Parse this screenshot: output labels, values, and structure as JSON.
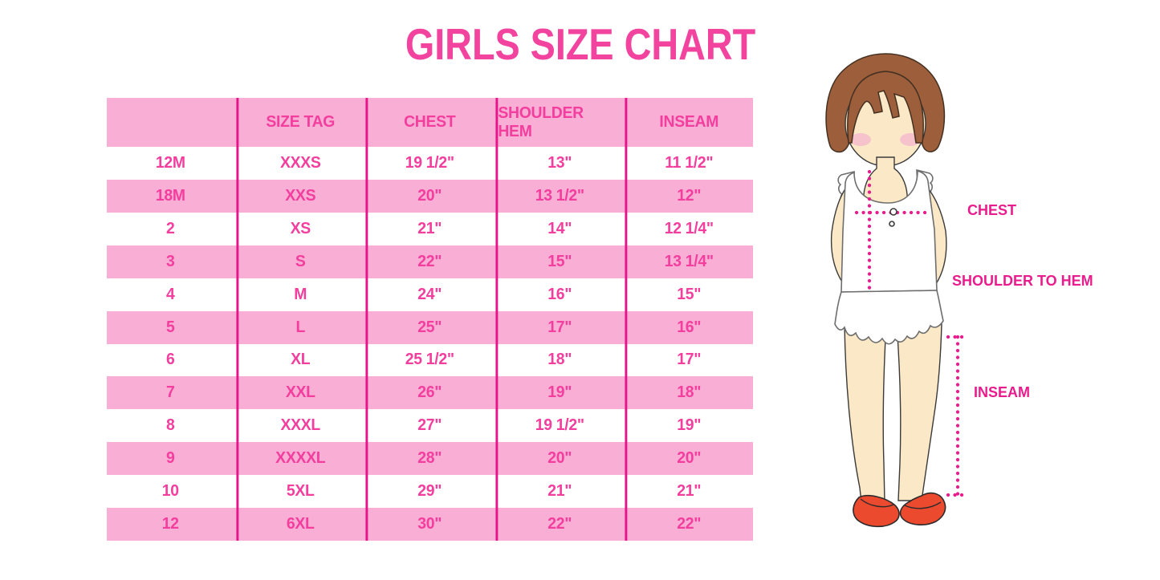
{
  "title": "GIRLS SIZE CHART",
  "colors": {
    "title_pink": "#F2439F",
    "row_pink": "#F9AED6",
    "grid_magenta": "#E8128A",
    "cell_text": "#F33E9E",
    "label_magenta": "#EA1C8D",
    "hair_brown": "#9C5E3B",
    "skin": "#FBE8C6",
    "blush": "#F6C2CC",
    "dress_white": "#FFFFFF",
    "dress_outline": "#6E6E6E",
    "shoe_red": "#EB4A2F"
  },
  "chart_data": {
    "type": "table",
    "title": "GIRLS SIZE CHART",
    "columns": [
      "",
      "SIZE TAG",
      "CHEST",
      "SHOULDER HEM",
      "INSEAM"
    ],
    "rows": [
      [
        "12M",
        "XXXS",
        "19 1/2\"",
        "13\"",
        "11 1/2\""
      ],
      [
        "18M",
        "XXS",
        "20\"",
        "13 1/2\"",
        "12\""
      ],
      [
        "2",
        "XS",
        "21\"",
        "14\"",
        "12 1/4\""
      ],
      [
        "3",
        "S",
        "22\"",
        "15\"",
        "13 1/4\""
      ],
      [
        "4",
        "M",
        "24\"",
        "16\"",
        "15\""
      ],
      [
        "5",
        "L",
        "25\"",
        "17\"",
        "16\""
      ],
      [
        "6",
        "XL",
        "25 1/2\"",
        "18\"",
        "17\""
      ],
      [
        "7",
        "XXL",
        "26\"",
        "19\"",
        "18\""
      ],
      [
        "8",
        "XXXL",
        "27\"",
        "19 1/2\"",
        "19\""
      ],
      [
        "9",
        "XXXXL",
        "28\"",
        "20\"",
        "20\""
      ],
      [
        "10",
        "5XL",
        "29\"",
        "21\"",
        "21\""
      ],
      [
        "12",
        "6XL",
        "30\"",
        "22\"",
        "22\""
      ]
    ],
    "layout": {
      "striped": "alternating white and pink rows, pink header row",
      "grid": "vertical magenta column separators only"
    }
  },
  "figure": {
    "description": "illustration of a girl used as measurement guide",
    "labels": {
      "chest": "CHEST",
      "shoulder_to_hem": "SHOULDER TO HEM",
      "inseam": "INSEAM"
    }
  }
}
